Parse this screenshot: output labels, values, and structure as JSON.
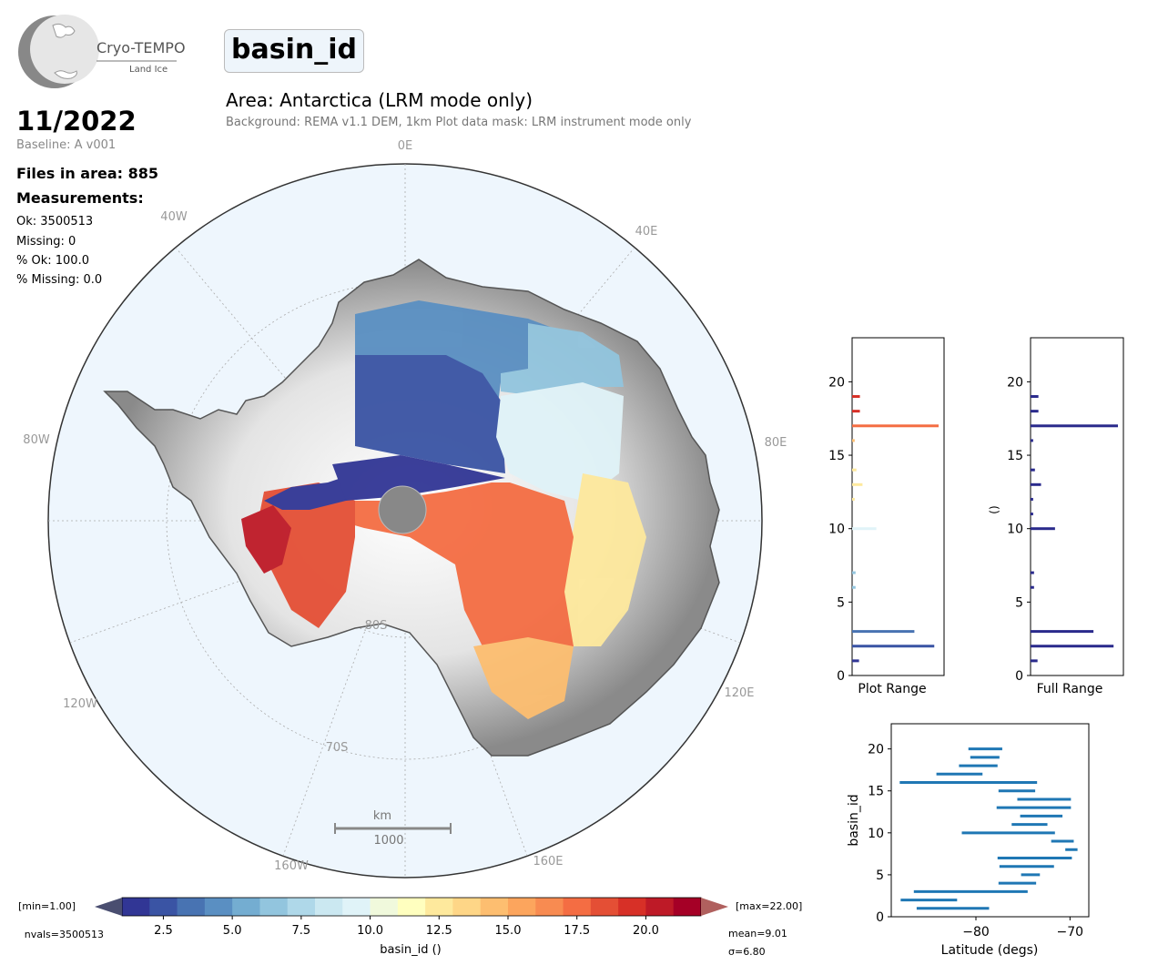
{
  "header": {
    "logo_title": "Cryo-TEMPO",
    "logo_subtitle": "Land Ice",
    "variable": "basin_id",
    "area_title": "Area: Antarctica (LRM mode only)",
    "subtitle": "Background: REMA v1.1 DEM, 1km   Plot data mask: LRM instrument mode only"
  },
  "info": {
    "date": "11/2022",
    "baseline": "Baseline: A v001",
    "files": "Files in area: 885",
    "measurements_label": "Measurements:",
    "ok": "Ok: 3500513",
    "missing": "Missing: 0",
    "pct_ok": "% Ok: 100.0",
    "pct_missing": "% Missing: 0.0"
  },
  "map": {
    "lon_labels": [
      "0E",
      "40E",
      "80E",
      "120E",
      "160E",
      "160W",
      "120W",
      "80W",
      "40W"
    ],
    "lat_labels": [
      "80S",
      "70S"
    ],
    "scalebar_unit": "km",
    "scalebar_value": "1000"
  },
  "colorbar": {
    "min_label": "[min=1.00]",
    "max_label": "[max=22.00]",
    "nvals_label": "nvals=3500513",
    "mean_label": "mean=9.01",
    "sigma_label": "σ=6.80",
    "label": "basin_id ()",
    "range": [
      1,
      22
    ],
    "ticks": [
      "2.5",
      "5.0",
      "7.5",
      "10.0",
      "12.5",
      "15.0",
      "17.5",
      "20.0"
    ],
    "colors": [
      "#313695",
      "#3a54a4",
      "#4873b2",
      "#5a8fc2",
      "#74add1",
      "#92c5de",
      "#afd8e9",
      "#cbe8f1",
      "#e0f3f8",
      "#f0f9dc",
      "#ffffbf",
      "#fee99d",
      "#fed687",
      "#fdbe70",
      "#fca55d",
      "#f88b51",
      "#f46d43",
      "#e44f35",
      "#d73027",
      "#be1a27",
      "#a50026"
    ]
  },
  "chart_data": [
    {
      "type": "bar",
      "orientation": "horizontal",
      "title": "",
      "xlabel": "Plot Range",
      "ylabel": "",
      "ylim": [
        0,
        23
      ],
      "yticks": [
        "0",
        "5",
        "10",
        "15",
        "20"
      ],
      "categories": [
        1,
        2,
        3,
        6,
        7,
        10,
        12,
        13,
        14,
        16,
        17,
        18,
        19
      ],
      "values": [
        0.08,
        0.95,
        0.72,
        0.04,
        0.04,
        0.28,
        0.03,
        0.12,
        0.05,
        0.03,
        1.0,
        0.09,
        0.09
      ],
      "colors": [
        "#313695",
        "#3a54a4",
        "#4873b2",
        "#92c5de",
        "#92c5de",
        "#e0f3f8",
        "#fee99d",
        "#fee99d",
        "#fee99d",
        "#fdbe70",
        "#f46d43",
        "#d73027",
        "#d73027"
      ]
    },
    {
      "type": "bar",
      "orientation": "horizontal",
      "title": "",
      "xlabel": "Full Range",
      "ylabel": "()",
      "ylim": [
        0,
        23
      ],
      "yticks": [
        "0",
        "5",
        "10",
        "15",
        "20"
      ],
      "categories": [
        1,
        2,
        3,
        6,
        7,
        10,
        11,
        12,
        13,
        14,
        16,
        17,
        18,
        19
      ],
      "values": [
        0.08,
        0.95,
        0.72,
        0.04,
        0.04,
        0.28,
        0.03,
        0.03,
        0.12,
        0.05,
        0.03,
        1.0,
        0.09,
        0.09
      ],
      "color": "#2a2a8c"
    },
    {
      "type": "range",
      "title": "",
      "xlabel": "Latitude (degs)",
      "ylabel": "basin_id",
      "xlim": [
        -89,
        -68
      ],
      "ylim": [
        0,
        23
      ],
      "xticks": [
        "-80",
        "-70"
      ],
      "yticks": [
        "0",
        "5",
        "10",
        "15",
        "20"
      ],
      "ranges": [
        {
          "id": 1,
          "min": -86.3,
          "max": -78.6
        },
        {
          "id": 2,
          "min": -88,
          "max": -82
        },
        {
          "id": 3,
          "min": -86.6,
          "max": -74.5
        },
        {
          "id": 4,
          "min": -77.6,
          "max": -73.6
        },
        {
          "id": 5,
          "min": -75.2,
          "max": -73.2
        },
        {
          "id": 6,
          "min": -77.5,
          "max": -71.7
        },
        {
          "id": 7,
          "min": -77.7,
          "max": -69.8
        },
        {
          "id": 8,
          "min": -70.5,
          "max": -69.2
        },
        {
          "id": 9,
          "min": -72,
          "max": -69.6
        },
        {
          "id": 10,
          "min": -81.5,
          "max": -71.6
        },
        {
          "id": 11,
          "min": -76.2,
          "max": -72.4
        },
        {
          "id": 12,
          "min": -75.3,
          "max": -70.8
        },
        {
          "id": 13,
          "min": -77.8,
          "max": -69.9
        },
        {
          "id": 14,
          "min": -75.6,
          "max": -69.9
        },
        {
          "id": 15,
          "min": -77.6,
          "max": -73.7
        },
        {
          "id": 16,
          "min": -88.1,
          "max": -73.5
        },
        {
          "id": 17,
          "min": -84.2,
          "max": -79.3
        },
        {
          "id": 18,
          "min": -81.8,
          "max": -77.7
        },
        {
          "id": 19,
          "min": -80.6,
          "max": -77.5
        },
        {
          "id": 20,
          "min": -80.8,
          "max": -77.2
        }
      ]
    }
  ]
}
